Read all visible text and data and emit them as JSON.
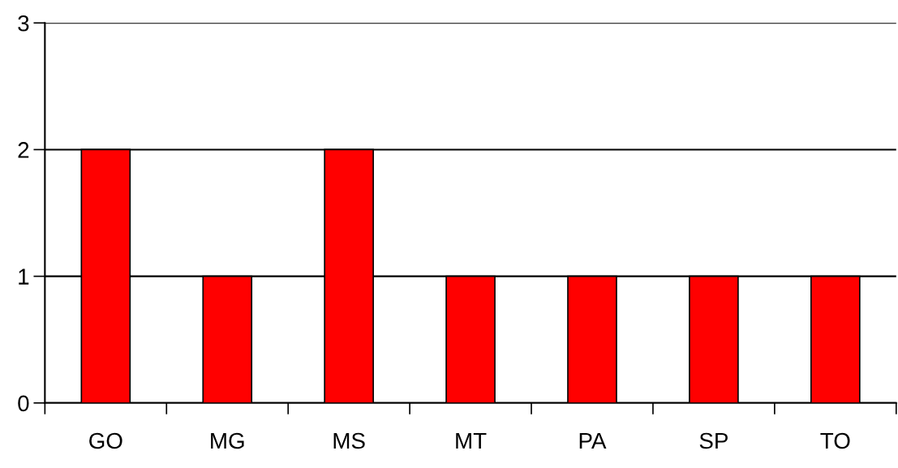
{
  "chart_data": {
    "type": "bar",
    "categories": [
      "GO",
      "MG",
      "MS",
      "MT",
      "PA",
      "SP",
      "TO"
    ],
    "values": [
      2,
      1,
      2,
      1,
      1,
      1,
      1
    ],
    "color": "#ff0000",
    "ylim": [
      0,
      3
    ],
    "yticks": [
      0,
      1,
      2,
      3
    ],
    "grid": "y"
  }
}
